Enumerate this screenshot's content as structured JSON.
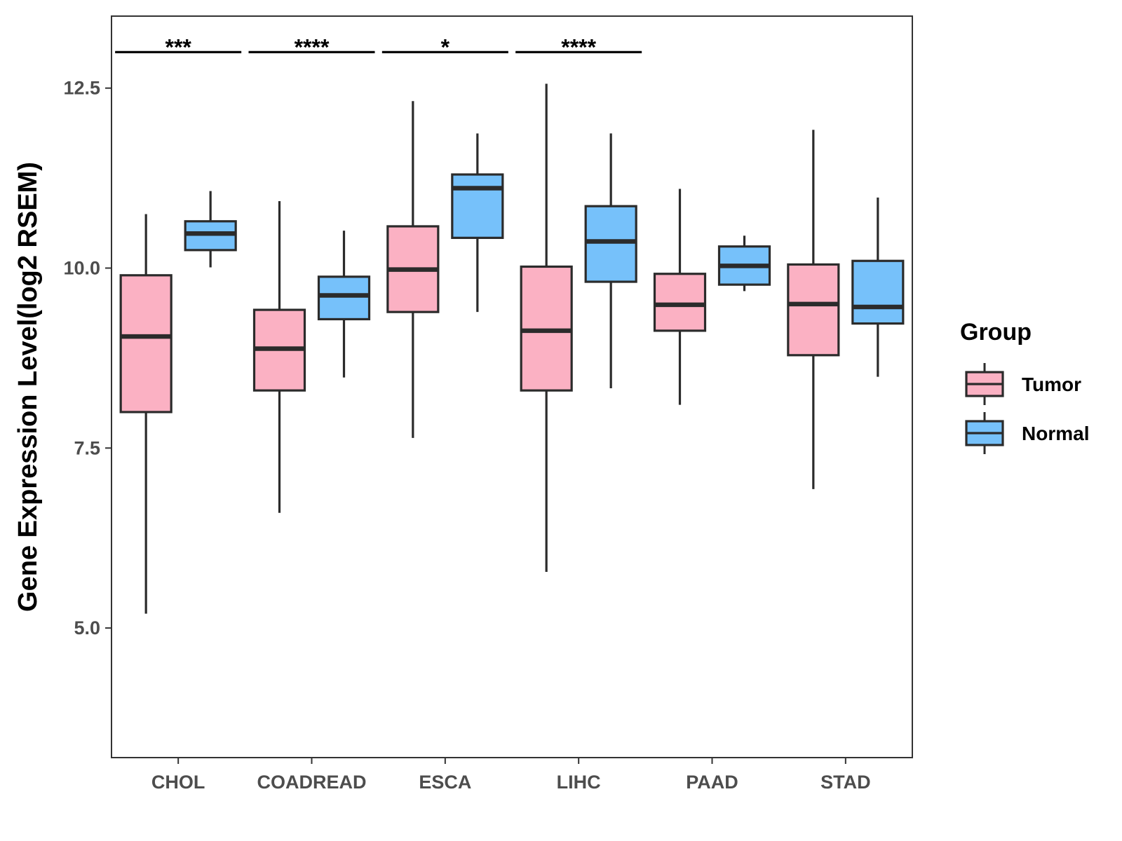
{
  "chart_data": {
    "type": "boxplot",
    "title": "",
    "xlabel": "",
    "ylabel": "Gene Expression Level(log2 RSEM)",
    "ylim": [
      3.2,
      13.5
    ],
    "yticks": [
      5.0,
      7.5,
      10.0,
      12.5
    ],
    "ytick_labels": [
      "5.0",
      "7.5",
      "10.0",
      "12.5"
    ],
    "categories": [
      "CHOL",
      "COADREAD",
      "ESCA",
      "LIHC",
      "PAAD",
      "STAD"
    ],
    "legend": {
      "title": "Group",
      "position": "right",
      "entries": [
        "Tumor",
        "Normal"
      ]
    },
    "series": [
      {
        "name": "Tumor",
        "color": "#FBB1C3",
        "boxes": [
          {
            "whislo": 5.2,
            "q1": 8.0,
            "med": 9.05,
            "q3": 9.9,
            "whishi": 10.75
          },
          {
            "whislo": 6.6,
            "q1": 8.3,
            "med": 8.88,
            "q3": 9.42,
            "whishi": 10.93
          },
          {
            "whislo": 7.64,
            "q1": 9.39,
            "med": 9.98,
            "q3": 10.58,
            "whishi": 12.32
          },
          {
            "whislo": 5.78,
            "q1": 8.3,
            "med": 9.13,
            "q3": 10.02,
            "whishi": 12.56
          },
          {
            "whislo": 8.1,
            "q1": 9.13,
            "med": 9.49,
            "q3": 9.92,
            "whishi": 11.1
          },
          {
            "whislo": 6.93,
            "q1": 8.79,
            "med": 9.5,
            "q3": 10.05,
            "whishi": 11.92
          }
        ]
      },
      {
        "name": "Normal",
        "color": "#76C1FA",
        "boxes": [
          {
            "whislo": 10.01,
            "q1": 10.25,
            "med": 10.48,
            "q3": 10.65,
            "whishi": 11.07
          },
          {
            "whislo": 8.48,
            "q1": 9.29,
            "med": 9.62,
            "q3": 9.88,
            "whishi": 10.52
          },
          {
            "whislo": 9.39,
            "q1": 10.42,
            "med": 11.11,
            "q3": 11.3,
            "whishi": 11.87
          },
          {
            "whislo": 8.33,
            "q1": 9.81,
            "med": 10.37,
            "q3": 10.86,
            "whishi": 11.87
          },
          {
            "whislo": 9.68,
            "q1": 9.77,
            "med": 10.03,
            "q3": 10.3,
            "whishi": 10.45
          },
          {
            "whislo": 8.49,
            "q1": 9.23,
            "med": 9.46,
            "q3": 10.1,
            "whishi": 10.98
          }
        ]
      }
    ],
    "significance": [
      {
        "category": "CHOL",
        "label": "***"
      },
      {
        "category": "COADREAD",
        "label": "****"
      },
      {
        "category": "ESCA",
        "label": "*"
      },
      {
        "category": "LIHC",
        "label": "****"
      }
    ],
    "significance_y": 13.0,
    "colors": {
      "box_outline": "#2b2b2b",
      "axis": "#333333"
    }
  }
}
